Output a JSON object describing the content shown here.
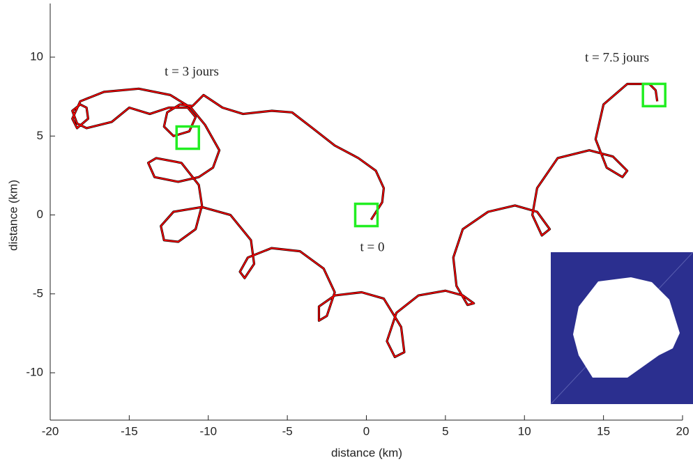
{
  "chart_data": {
    "type": "line",
    "xlabel": "distance (km)",
    "ylabel": "distance (km)",
    "xlim": [
      -20,
      20
    ],
    "ylim": [
      -13,
      13.4
    ],
    "xticks": [
      -20,
      -15,
      -10,
      -5,
      0,
      5,
      10,
      15,
      20
    ],
    "yticks": [
      -10,
      -5,
      0,
      5,
      10
    ],
    "grid": false,
    "x": [
      0.3,
      1.0,
      1.1,
      0.6,
      -0.5,
      -2.0,
      -3.4,
      -4.7,
      -6.0,
      -7.8,
      -9.1,
      -10.3,
      -11.0,
      -11.8,
      -12.6,
      -12.8,
      -12.2,
      -11.2,
      -10.8,
      -11.3,
      -12.5,
      -13.7,
      -15.0,
      -16.1,
      -17.7,
      -18.3,
      -18.6,
      -18.1,
      -17.7,
      -17.6,
      -18.3,
      -18.6,
      -18.1,
      -16.6,
      -14.4,
      -12.4,
      -11.1,
      -10.2,
      -9.3,
      -9.7,
      -10.6,
      -11.9,
      -13.4,
      -13.8,
      -13.3,
      -11.7,
      -10.6,
      -10.4,
      -10.8,
      -11.9,
      -12.8,
      -13.0,
      -12.2,
      -10.4,
      -8.6,
      -7.3,
      -7.1,
      -7.7,
      -8.0,
      -7.5,
      -6.0,
      -4.2,
      -2.7,
      -2.0,
      -2.5,
      -3.0,
      -3.0,
      -2.0,
      -0.3,
      1.1,
      2.2,
      2.4,
      1.8,
      1.3,
      1.9,
      3.3,
      5.0,
      6.1,
      6.8,
      6.4,
      5.7,
      5.5,
      6.1,
      7.7,
      9.4,
      10.8,
      11.6,
      11.1,
      10.5,
      10.8,
      12.1,
      14.1,
      15.6,
      16.5,
      16.2,
      15.2,
      14.5,
      15.0,
      16.5,
      17.9,
      18.3,
      18.4
    ],
    "series": [
      {
        "color": "#000000",
        "values": [
          -0.3,
          0.8,
          1.7,
          2.8,
          3.6,
          4.4,
          5.5,
          6.5,
          6.6,
          6.4,
          6.8,
          7.6,
          6.9,
          7.0,
          6.5,
          5.6,
          5.0,
          5.3,
          6.2,
          6.8,
          6.8,
          6.4,
          6.8,
          5.9,
          5.5,
          5.8,
          6.6,
          7.0,
          6.8,
          6.1,
          5.5,
          6.1,
          7.2,
          7.8,
          8.0,
          7.6,
          6.8,
          5.7,
          4.1,
          3.0,
          2.4,
          2.1,
          2.4,
          3.3,
          3.6,
          3.3,
          1.9,
          0.6,
          -0.9,
          -1.7,
          -1.6,
          -0.7,
          0.2,
          0.5,
          0.0,
          -1.6,
          -3.1,
          -4.0,
          -3.6,
          -2.7,
          -2.1,
          -2.3,
          -3.4,
          -4.9,
          -6.4,
          -6.7,
          -5.8,
          -5.1,
          -4.9,
          -5.3,
          -7.1,
          -8.7,
          -9.0,
          -8.0,
          -6.2,
          -5.1,
          -4.8,
          -5.1,
          -5.6,
          -5.7,
          -4.5,
          -2.7,
          -0.9,
          0.2,
          0.6,
          0.2,
          -0.9,
          -1.3,
          0.0,
          1.7,
          3.6,
          4.1,
          3.7,
          2.8,
          2.4,
          3.0,
          4.8,
          7.0,
          8.3,
          8.3,
          7.9,
          7.2
        ]
      },
      {
        "color": "#ee0000",
        "values": [
          -0.3,
          0.8,
          1.7,
          2.8,
          3.6,
          4.4,
          5.5,
          6.5,
          6.6,
          6.4,
          6.8,
          7.6,
          6.9,
          7.0,
          6.5,
          5.6,
          5.0,
          5.3,
          6.2,
          6.8,
          6.8,
          6.4,
          6.8,
          5.9,
          5.5,
          5.8,
          6.6,
          7.0,
          6.8,
          6.1,
          5.5,
          6.1,
          7.2,
          7.8,
          8.0,
          7.6,
          6.8,
          5.7,
          4.1,
          3.0,
          2.4,
          2.1,
          2.4,
          3.3,
          3.6,
          3.3,
          1.9,
          0.6,
          -0.9,
          -1.7,
          -1.6,
          -0.7,
          0.2,
          0.5,
          0.0,
          -1.6,
          -3.1,
          -4.0,
          -3.6,
          -2.7,
          -2.1,
          -2.3,
          -3.4,
          -4.9,
          -6.4,
          -6.7,
          -5.8,
          -5.1,
          -4.9,
          -5.3,
          -7.1,
          -8.7,
          -9.0,
          -8.0,
          -6.2,
          -5.1,
          -4.8,
          -5.1,
          -5.6,
          -5.7,
          -4.5,
          -2.7,
          -0.9,
          0.2,
          0.6,
          0.2,
          -0.9,
          -1.3,
          0.0,
          1.7,
          3.6,
          4.1,
          3.7,
          2.8,
          2.4,
          3.0,
          4.8,
          7.0,
          8.3,
          8.3,
          7.9,
          7.2
        ]
      }
    ],
    "markers": {
      "color": "#22ee22",
      "x": [
        0,
        -11.3,
        18.2
      ],
      "y": [
        0,
        4.9,
        7.6
      ]
    },
    "annotations": [
      "t = 3 jours",
      "t = 7.5 jours",
      "t = 0"
    ]
  }
}
